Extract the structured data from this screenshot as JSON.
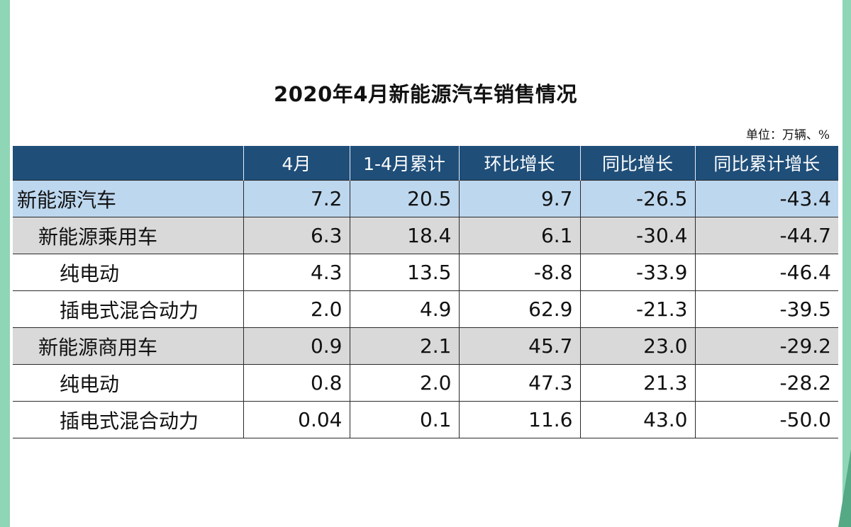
{
  "title": "2020年4月新能源汽车销售情况",
  "unit": "单位：万辆、%",
  "colors": {
    "header_bg": "#1f4e79",
    "row_highlight": "#bdd7ee",
    "row_gray": "#d9d9d9",
    "edge_green": "#8fd6b6"
  },
  "table": {
    "headers": [
      "",
      "4月",
      "1-4月累计",
      "环比增长",
      "同比增长",
      "同比累计增长"
    ],
    "rows": [
      [
        "新能源汽车",
        "7.2",
        "20.5",
        "9.7",
        "-26.5",
        "-43.4"
      ],
      [
        "新能源乘用车",
        "6.3",
        "18.4",
        "6.1",
        "-30.4",
        "-44.7"
      ],
      [
        "纯电动",
        "4.3",
        "13.5",
        "-8.8",
        "-33.9",
        "-46.4"
      ],
      [
        "插电式混合动力",
        "2.0",
        "4.9",
        "62.9",
        "-21.3",
        "-39.5"
      ],
      [
        "新能源商用车",
        "0.9",
        "2.1",
        "45.7",
        "23.0",
        "-29.2"
      ],
      [
        "纯电动",
        "0.8",
        "2.0",
        "47.3",
        "21.3",
        "-28.2"
      ],
      [
        "插电式混合动力",
        "0.04",
        "0.1",
        "11.6",
        "43.0",
        "-50.0"
      ]
    ]
  }
}
